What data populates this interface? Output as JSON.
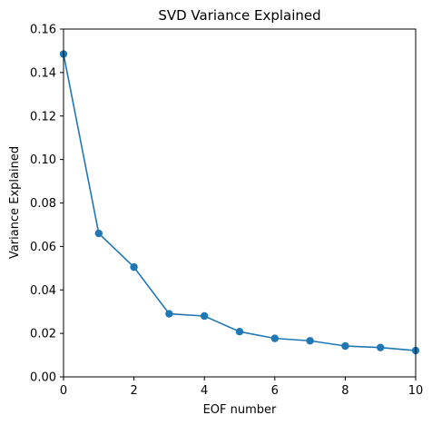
{
  "chart_data": {
    "type": "line",
    "title": "SVD Variance Explained",
    "xlabel": "EOF number",
    "ylabel": "Variance Explained",
    "xlim": [
      0,
      10
    ],
    "ylim": [
      0,
      0.16
    ],
    "xticks": [
      0,
      2,
      4,
      6,
      8,
      10
    ],
    "xtick_labels": [
      "0",
      "2",
      "4",
      "6",
      "8",
      "10"
    ],
    "yticks": [
      0,
      0.02,
      0.04,
      0.06,
      0.08,
      0.1,
      0.12,
      0.14,
      0.16
    ],
    "ytick_labels": [
      "0.00",
      "0.02",
      "0.04",
      "0.06",
      "0.08",
      "0.10",
      "0.12",
      "0.14",
      "0.16"
    ],
    "grid": false,
    "legend": false,
    "series": [
      {
        "color": "#1f77b4",
        "marker": "circle",
        "x": [
          0,
          1,
          2,
          3,
          4,
          5,
          6,
          7,
          8,
          9,
          10
        ],
        "y": [
          0.1485,
          0.066,
          0.0505,
          0.029,
          0.028,
          0.0208,
          0.0177,
          0.0166,
          0.0142,
          0.0135,
          0.0121
        ]
      }
    ]
  }
}
